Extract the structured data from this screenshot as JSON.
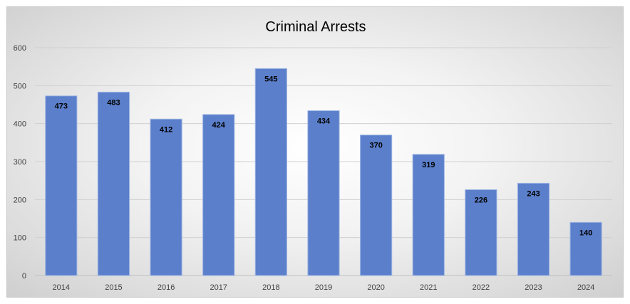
{
  "chart_data": {
    "type": "bar",
    "title": "Criminal Arrests",
    "xlabel": "",
    "ylabel": "",
    "categories": [
      "2014",
      "2015",
      "2016",
      "2017",
      "2018",
      "2019",
      "2020",
      "2021",
      "2022",
      "2023",
      "2024"
    ],
    "values": [
      473,
      483,
      412,
      424,
      545,
      434,
      370,
      319,
      226,
      243,
      140
    ],
    "ylim": [
      0,
      600
    ],
    "yticks": [
      0,
      100,
      200,
      300,
      400,
      500,
      600
    ],
    "grid": true,
    "legend": "none",
    "data_labels": "inside-end",
    "bar_color": "#5b7fcb",
    "bar_edge_color": "#9db4e2"
  }
}
